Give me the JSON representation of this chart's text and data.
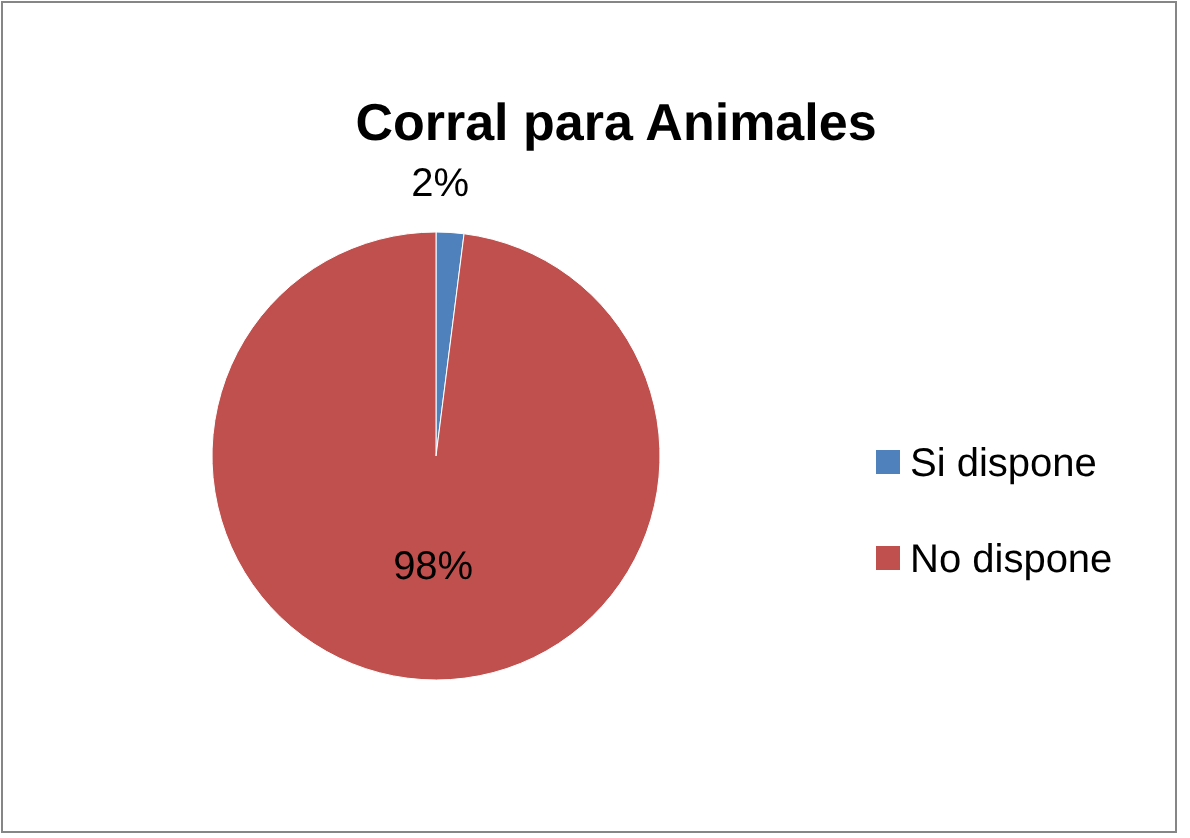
{
  "chart_data": {
    "type": "pie",
    "title": "Corral para Animales",
    "categories": [
      "Si dispone",
      "No dispone"
    ],
    "values": [
      2,
      98
    ],
    "value_labels": [
      "2%",
      "98%"
    ],
    "colors": [
      "#4f81bd",
      "#c0504d"
    ],
    "legend": "right"
  }
}
